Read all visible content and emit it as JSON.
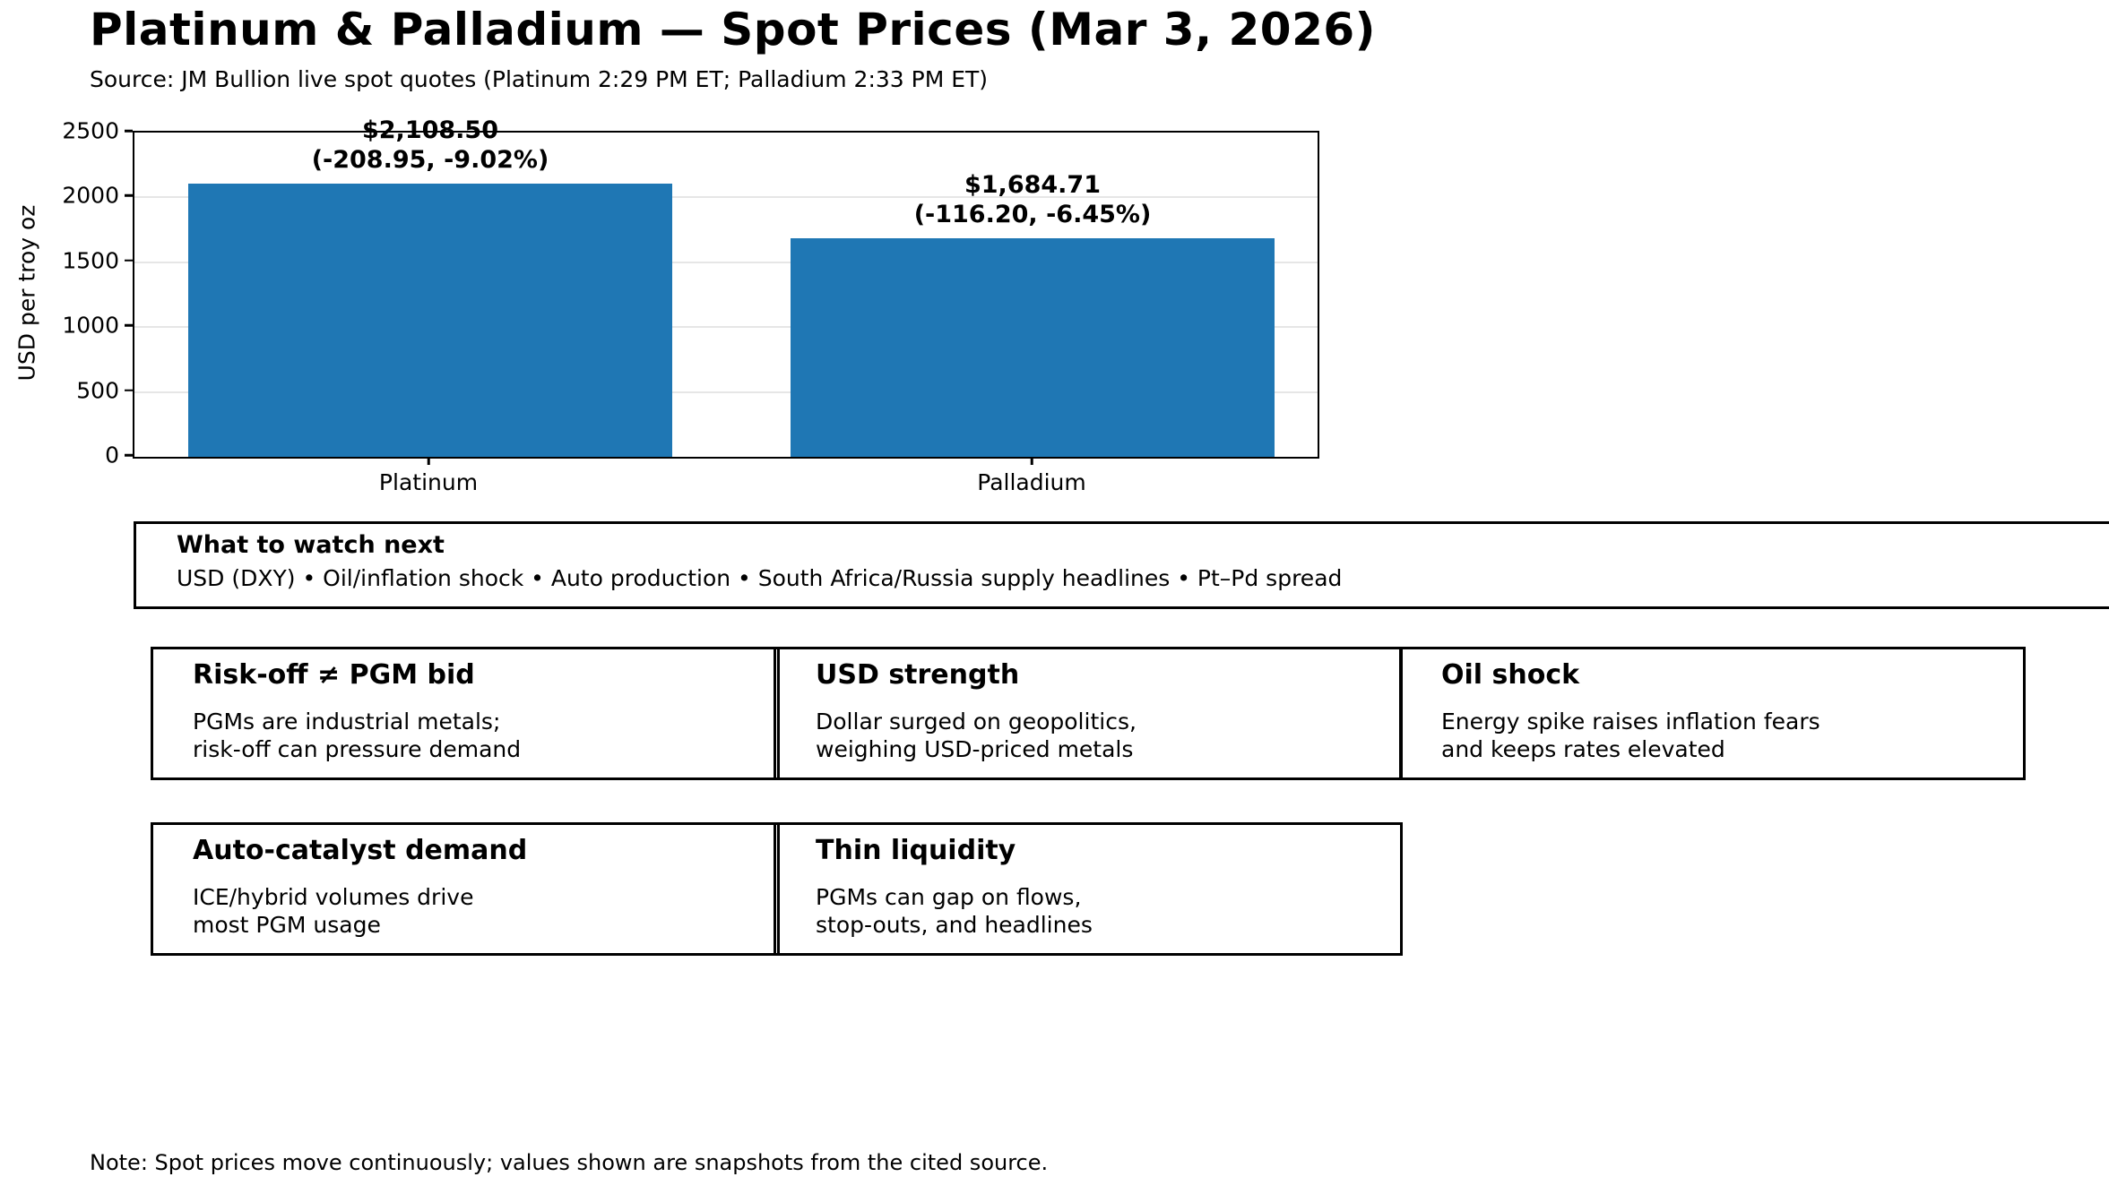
{
  "header": {
    "title": "Platinum & Palladium — Spot Prices (Mar 3, 2026)",
    "subtitle": "Source: JM Bullion live spot quotes (Platinum 2:29 PM ET; Palladium 2:33 PM ET)"
  },
  "chart_data": {
    "type": "bar",
    "categories": [
      "Platinum",
      "Palladium"
    ],
    "values": [
      2108.5,
      1684.71
    ],
    "annotations": [
      {
        "price": "$2,108.50",
        "change": "(-208.95, -9.02%)"
      },
      {
        "price": "$1,684.71",
        "change": "(-116.20, -6.45%)"
      }
    ],
    "ylabel": "USD per troy oz",
    "ylim": [
      0,
      2500
    ],
    "yticks": [
      0,
      500,
      1000,
      1500,
      2000,
      2500
    ],
    "grid": "horizontal-light",
    "legend": "none",
    "bar_color": "#1f77b4"
  },
  "watch_box": {
    "title": "What to watch next",
    "body": "USD (DXY) • Oil/inflation shock • Auto production • South Africa/Russia supply headlines • Pt–Pd spread"
  },
  "cards": [
    {
      "title": "Risk-off ≠ PGM bid",
      "line1": "PGMs are industrial metals;",
      "line2": "risk-off can pressure demand"
    },
    {
      "title": "USD strength",
      "line1": "Dollar surged on geopolitics,",
      "line2": "weighing USD-priced metals"
    },
    {
      "title": "Oil shock",
      "line1": "Energy spike raises inflation fears",
      "line2": "and keeps rates elevated"
    },
    {
      "title": "Auto-catalyst demand",
      "line1": "ICE/hybrid volumes drive",
      "line2": "most PGM usage"
    },
    {
      "title": "Thin liquidity",
      "line1": "PGMs can gap on flows,",
      "line2": "stop-outs, and headlines"
    }
  ],
  "note": "Note: Spot prices move continuously; values shown are snapshots from the cited source."
}
